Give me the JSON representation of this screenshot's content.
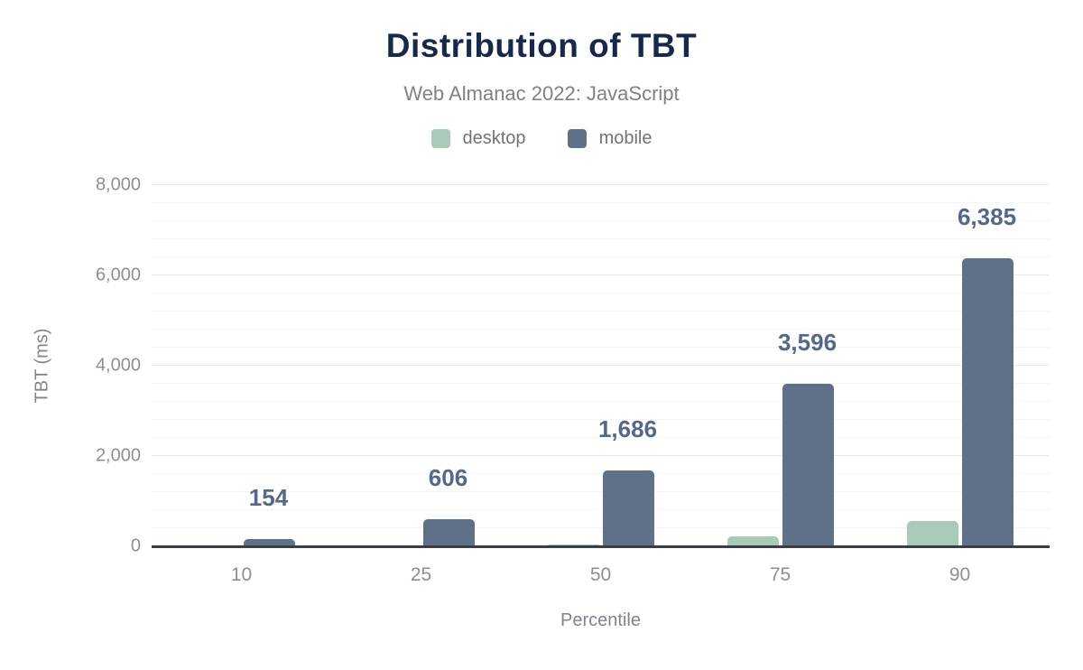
{
  "chart_data": {
    "type": "bar",
    "title": "Distribution of TBT",
    "subtitle": "Web Almanac 2022: JavaScript",
    "xlabel": "Percentile",
    "ylabel": "TBT (ms)",
    "categories": [
      "10",
      "25",
      "50",
      "75",
      "90"
    ],
    "series": [
      {
        "name": "desktop",
        "color": "#a9cab8",
        "values": [
          5,
          15,
          50,
          220,
          560
        ],
        "data_labels": null
      },
      {
        "name": "mobile",
        "color": "#5f7089",
        "values": [
          154,
          606,
          1686,
          3596,
          6385
        ],
        "data_labels": [
          "154",
          "606",
          "1,686",
          "3,596",
          "6,385"
        ]
      }
    ],
    "ylim": [
      0,
      8000
    ],
    "y_major_step": 2000,
    "y_minor_step": 400,
    "y_tick_labels": [
      "0",
      "2,000",
      "4,000",
      "6,000",
      "8,000"
    ],
    "grid": "horizontal-on",
    "legend_position": "top",
    "colors": {
      "title": "#16294c",
      "subtitle": "#7b828b",
      "value_label": "#55688c",
      "axis_line": "#3a3e45",
      "tick_label": "#8a9098"
    }
  }
}
